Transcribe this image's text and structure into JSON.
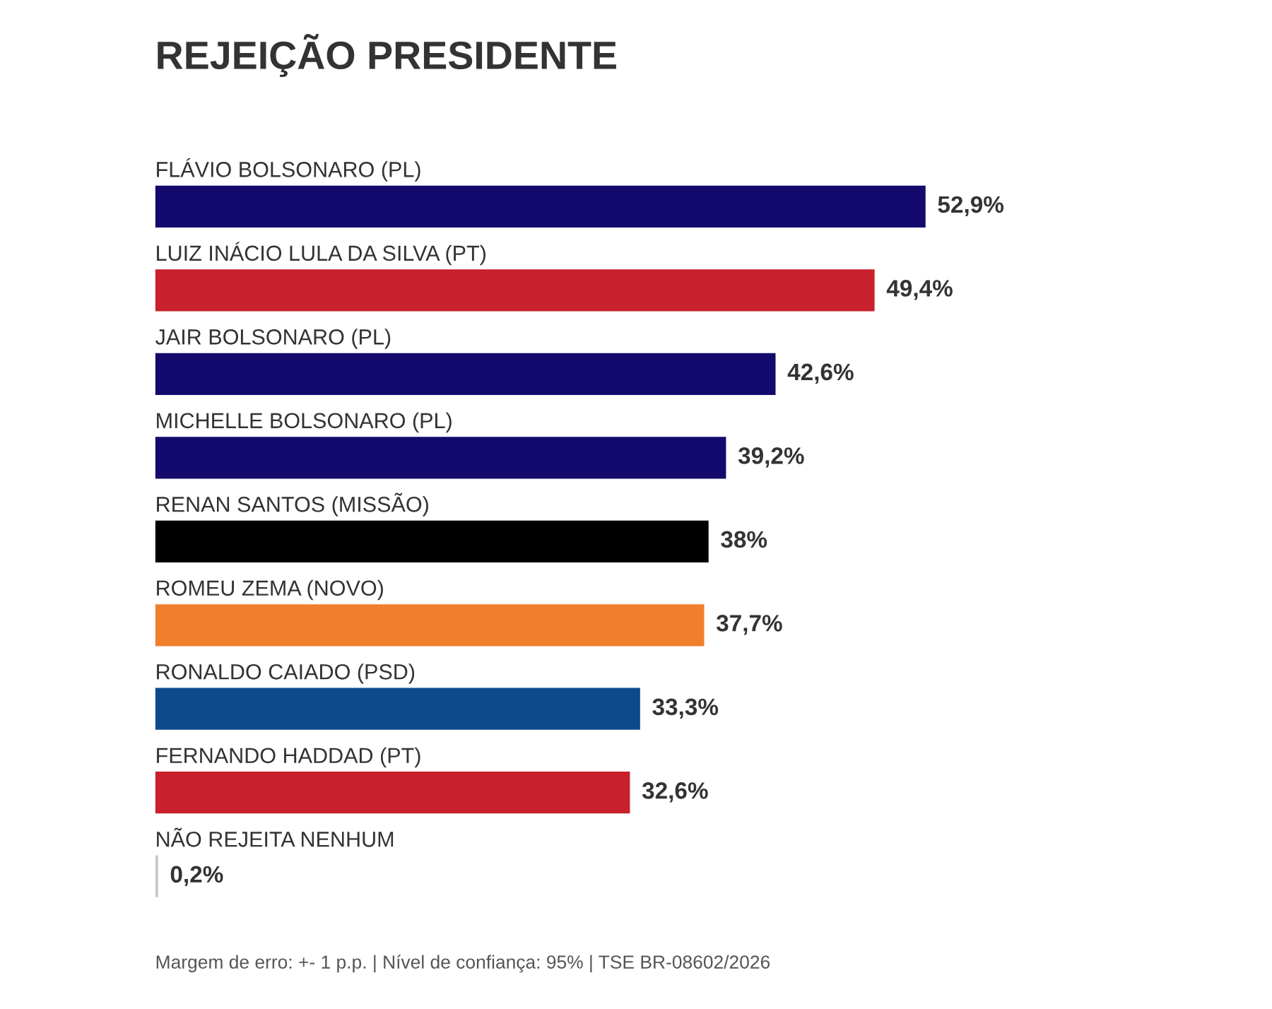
{
  "chart_data": {
    "type": "bar",
    "orientation": "horizontal",
    "title": "REJEIÇÃO PRESIDENTE",
    "categories": [
      "FLÁVIO BOLSONARO (PL)",
      "LUIZ INÁCIO LULA DA SILVA (PT)",
      "JAIR BOLSONARO (PL)",
      "MICHELLE BOLSONARO (PL)",
      "RENAN SANTOS (MISSÃO)",
      "ROMEU ZEMA (NOVO)",
      "RONALDO CAIADO (PSD)",
      "FERNANDO HADDAD (PT)",
      "NÃO REJEITA NENHUM"
    ],
    "values": [
      52.9,
      49.4,
      42.6,
      39.2,
      38,
      37.7,
      33.3,
      32.6,
      0.2
    ],
    "colors": [
      "#140a6e",
      "#c8202c",
      "#140a6e",
      "#140a6e",
      "#000000",
      "#f07f2d",
      "#0d4a8c",
      "#c8202c",
      "#c8c8c8"
    ],
    "value_labels": [
      "52,9%",
      "49,4%",
      "42,6%",
      "39,2%",
      "38%",
      "37,7%",
      "33,3%",
      "32,6%",
      "0,2%"
    ],
    "annotations": [
      "Margem de erro: +- 1 p.p. | Nível de confiança: 95% | TSE BR-08602/2026"
    ]
  }
}
